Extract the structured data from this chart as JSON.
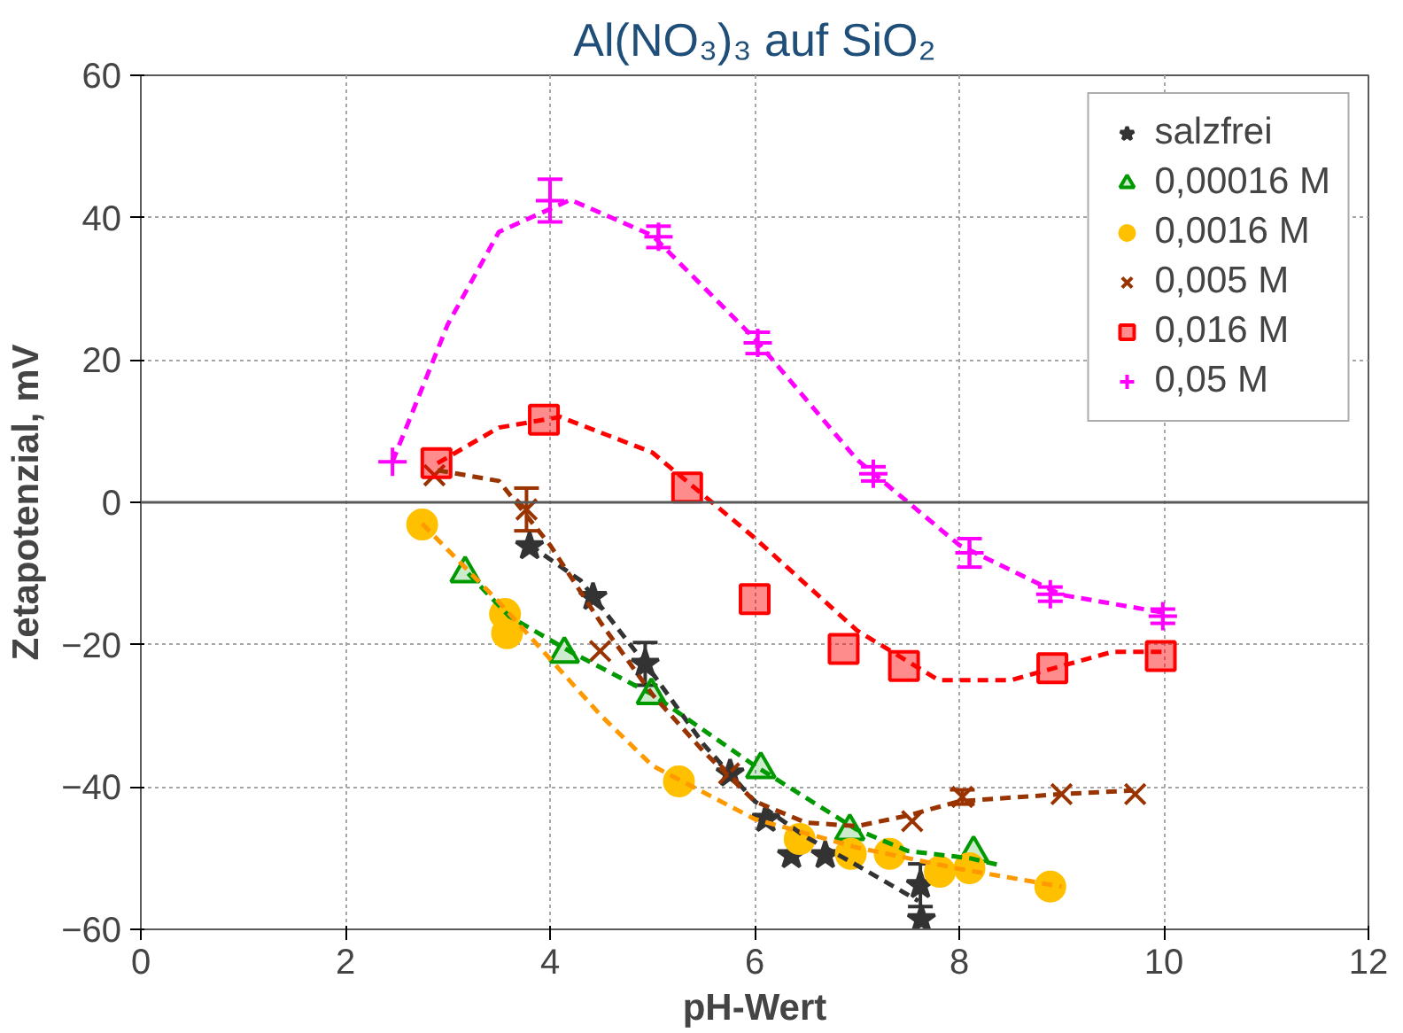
{
  "chart_data": {
    "type": "scatter",
    "title": "Al(NO₃)₃ auf SiO₂",
    "xlabel": "pH-Wert",
    "ylabel": "Zetapotenzial, mV",
    "xlim": [
      0,
      12
    ],
    "xticks": [
      0,
      2,
      4,
      6,
      8,
      10,
      12
    ],
    "ylim": [
      -60,
      60
    ],
    "yticks": [
      -60,
      -40,
      -20,
      0,
      20,
      40,
      60
    ],
    "grid": true,
    "legend": "top right",
    "ref_lines": [
      {
        "axis": "y",
        "value": 0,
        "color": "#595959",
        "line_style": "solid"
      }
    ],
    "series": [
      {
        "name": "salzfrei",
        "color": "#333333",
        "marker": "star",
        "x": [
          3.8,
          4.42,
          4.93,
          5.76,
          6.11,
          6.36,
          6.69,
          7.62,
          7.63
        ],
        "values": [
          -6.2,
          -13.3,
          -22.7,
          -38.1,
          -44.5,
          -49.6,
          -49.6,
          -53.8,
          -58.6
        ],
        "errors": [
          null,
          null,
          3,
          null,
          null,
          null,
          null,
          3,
          null
        ]
      },
      {
        "name": "0,00016 M",
        "color": "#009900",
        "marker": "triangle",
        "x": [
          3.17,
          4.14,
          4.99,
          6.06,
          6.93,
          8.14
        ],
        "values": [
          -10.0,
          -21.3,
          -27.1,
          -37.5,
          -46.2,
          -49.3
        ]
      },
      {
        "name": "0,0016 M",
        "color": "#ffc000",
        "marker": "circle",
        "x": [
          2.75,
          3.56,
          3.58,
          5.26,
          6.44,
          6.94,
          7.32,
          7.81,
          8.1,
          8.89
        ],
        "values": [
          -3.1,
          -15.7,
          -18.4,
          -39.2,
          -47.3,
          -49.4,
          -49.4,
          -51.9,
          -51.4,
          -54.0
        ]
      },
      {
        "name": "0,005 M",
        "color": "#993300",
        "marker": "x",
        "x": [
          2.87,
          3.77,
          4.49,
          5.75,
          7.54,
          8.03,
          9.0,
          9.72
        ],
        "values": [
          3.8,
          -1.0,
          -20.9,
          -38.1,
          -44.8,
          -41.4,
          -41.0,
          -41.0
        ],
        "errors": [
          null,
          3,
          null,
          null,
          null,
          1,
          null,
          null
        ]
      },
      {
        "name": "0,016 M",
        "color": "#ff0000",
        "marker": "square",
        "x": [
          2.89,
          3.94,
          5.34,
          6.0,
          6.87,
          7.46,
          8.91,
          9.97
        ],
        "values": [
          5.5,
          11.6,
          2.1,
          -13.6,
          -20.6,
          -23.0,
          -23.3,
          -21.6
        ]
      },
      {
        "name": "0,05 M",
        "color": "#ff00ff",
        "marker": "cross",
        "x": [
          2.46,
          4.0,
          5.06,
          6.03,
          7.16,
          8.1,
          8.89,
          9.99
        ],
        "values": [
          5.7,
          42.4,
          37.3,
          22.4,
          4.0,
          -7.1,
          -12.9,
          -16.0
        ],
        "errors": [
          null,
          3,
          1.5,
          1.5,
          1,
          2,
          1,
          1
        ]
      },
      {
        "type": "line",
        "color": "#333333",
        "line_style": "dashed",
        "marker": "none",
        "x": [
          3.8,
          4.3,
          5,
          5.5,
          6,
          6.5,
          7,
          7.6
        ],
        "values": [
          -6,
          -11,
          -24,
          -34,
          -42,
          -47,
          -51,
          -56
        ]
      },
      {
        "type": "line",
        "color": "#009900",
        "line_style": "dashed",
        "marker": "none",
        "x": [
          3.2,
          3.6,
          4.2,
          5,
          6,
          7,
          7.5,
          8.1,
          8.4
        ],
        "values": [
          -10,
          -16,
          -21,
          -27,
          -37,
          -46,
          -49,
          -50,
          -51
        ]
      },
      {
        "type": "line",
        "color": "#ff9900",
        "line_style": "dashed",
        "marker": "none",
        "x": [
          2.75,
          3.5,
          4,
          4.5,
          5,
          6,
          7,
          8,
          9
        ],
        "values": [
          -3,
          -14,
          -22,
          -30,
          -37,
          -44.5,
          -48.5,
          -51.5,
          -54
        ]
      },
      {
        "type": "line",
        "color": "#993300",
        "line_style": "dashed",
        "marker": "none",
        "x": [
          2.9,
          3.5,
          4,
          4.5,
          5,
          5.5,
          6,
          6.5,
          7,
          7.5,
          8,
          9,
          9.7
        ],
        "values": [
          4.5,
          3,
          -6,
          -17,
          -27,
          -35,
          -42,
          -45,
          -45.5,
          -44,
          -42,
          -41,
          -40.5
        ]
      },
      {
        "type": "line",
        "color": "#ff0000",
        "line_style": "dashed",
        "marker": "none",
        "x": [
          2.9,
          3.5,
          4.1,
          5,
          6,
          7,
          7.8,
          8.5,
          9.5,
          10
        ],
        "values": [
          5.5,
          10.5,
          12,
          7,
          -5,
          -18,
          -25,
          -25,
          -21,
          -21
        ]
      },
      {
        "type": "line",
        "color": "#ff00ff",
        "line_style": "dashed",
        "marker": "none",
        "x": [
          2.46,
          3.0,
          3.5,
          4.2,
          5,
          6,
          7,
          8,
          9,
          10
        ],
        "values": [
          5.7,
          25,
          38,
          42.5,
          37.5,
          23,
          6,
          -6,
          -13,
          -15.5
        ]
      }
    ]
  }
}
